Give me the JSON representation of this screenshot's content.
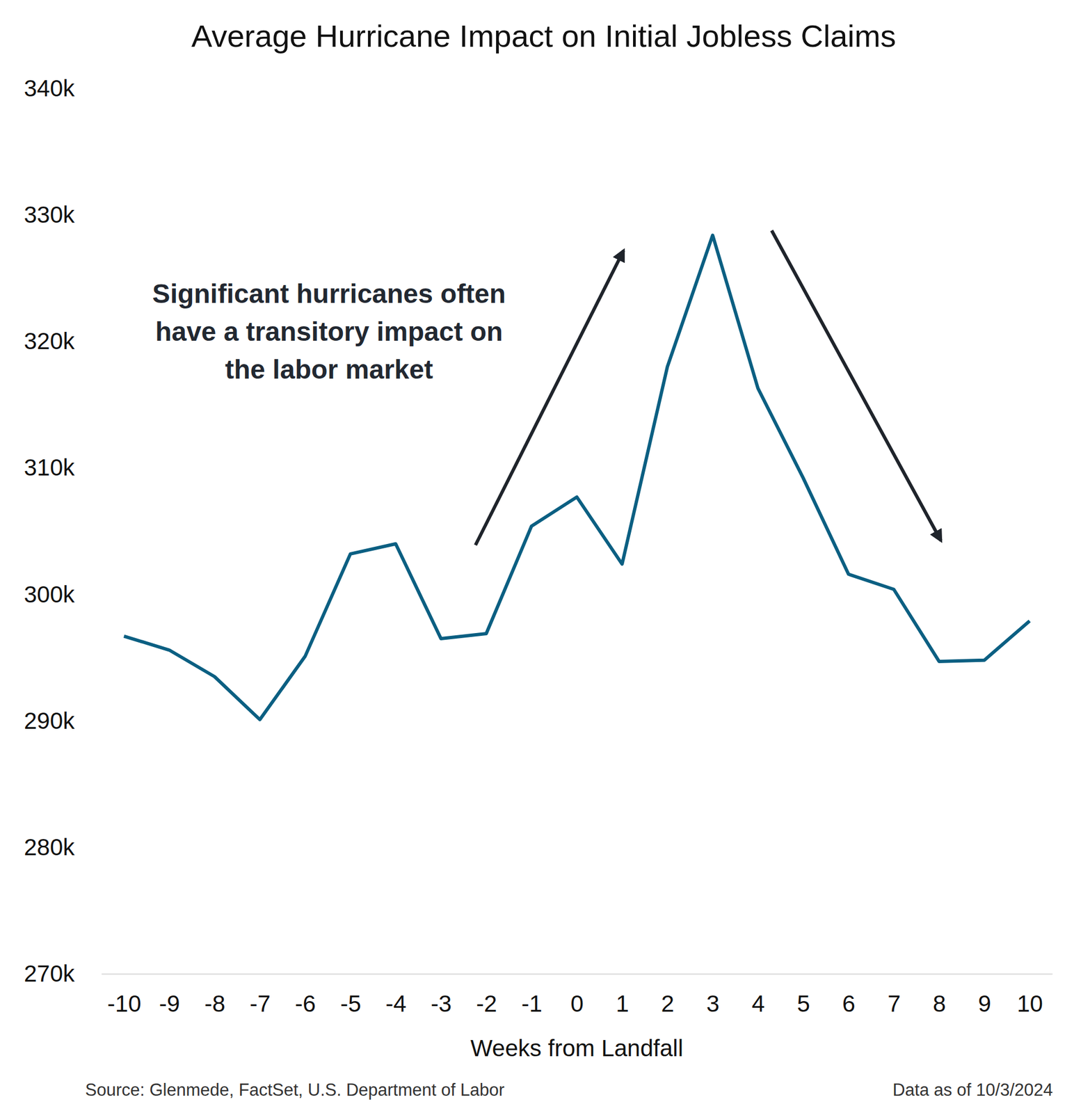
{
  "chart_data": {
    "type": "line",
    "title": "Average Hurricane Impact on Initial Jobless Claims",
    "x_label": "Weeks from Landfall",
    "annotation": [
      "Significant hurricanes often",
      "have a transitory impact on",
      "the labor market"
    ],
    "source": "Source: Glenmede, FactSet, U.S. Department of Labor",
    "note": "Data as of 10/3/2024",
    "x": [
      -10,
      -9,
      -8,
      -7,
      -6,
      -5,
      -4,
      -3,
      -2,
      -1,
      0,
      1,
      2,
      3,
      4,
      5,
      6,
      7,
      8,
      9,
      10
    ],
    "values": [
      296700,
      295600,
      293500,
      290100,
      295100,
      303200,
      304000,
      296500,
      296900,
      305400,
      307700,
      302400,
      318000,
      328400,
      316300,
      309200,
      301600,
      300400,
      294700,
      294800,
      297900
    ],
    "color": "#0b5f82",
    "xlim": [
      -10.5,
      10.5
    ],
    "xticks": [
      -10,
      -9,
      -8,
      -7,
      -6,
      -5,
      -4,
      -3,
      -2,
      -1,
      0,
      1,
      2,
      3,
      4,
      5,
      6,
      7,
      8,
      9,
      10
    ],
    "ylim": [
      270000,
      340000
    ],
    "yticks": [
      {
        "value": 270000,
        "label": "270k"
      },
      {
        "value": 280000,
        "label": "280k"
      },
      {
        "value": 290000,
        "label": "290k"
      },
      {
        "value": 300000,
        "label": "300k"
      },
      {
        "value": 310000,
        "label": "310k"
      },
      {
        "value": 320000,
        "label": "320k"
      },
      {
        "value": 330000,
        "label": "330k"
      },
      {
        "value": 340000,
        "label": "340k"
      }
    ],
    "grid": false
  }
}
